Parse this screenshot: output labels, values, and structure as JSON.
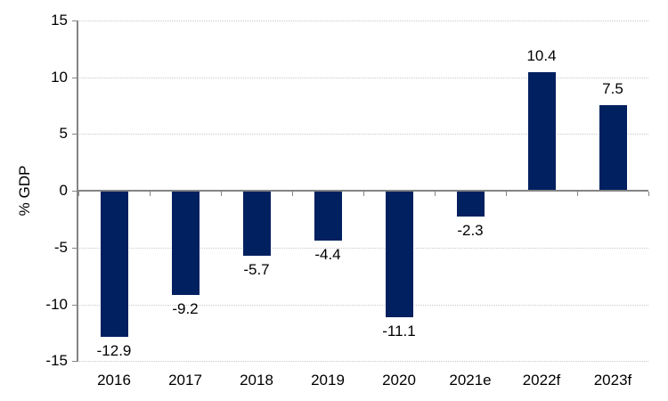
{
  "chart_data": {
    "type": "bar",
    "title": "",
    "xlabel": "",
    "ylabel": "% GDP",
    "categories": [
      "2016",
      "2017",
      "2018",
      "2019",
      "2020",
      "2021e",
      "2022f",
      "2023f"
    ],
    "values": [
      -12.9,
      -9.2,
      -5.7,
      -4.4,
      -11.1,
      -2.3,
      10.4,
      7.5
    ],
    "value_labels": [
      "-12.9",
      "-9.2",
      "-5.7",
      "-4.4",
      "-11.1",
      "-2.3",
      "10.4",
      "7.5"
    ],
    "ylim": [
      -15,
      15
    ],
    "yticks": [
      15,
      10,
      5,
      0,
      -5,
      -10,
      -15
    ],
    "ytick_labels": [
      "15",
      "10",
      "5",
      "0",
      "-5",
      "-10",
      "-15"
    ],
    "grid": "horizontal-dotted",
    "legend_position": "none",
    "colors": {
      "bar": "#002060",
      "axis": "#848484",
      "gridline": "#c8c8c8",
      "text": "#000000",
      "background": "#ffffff"
    }
  }
}
